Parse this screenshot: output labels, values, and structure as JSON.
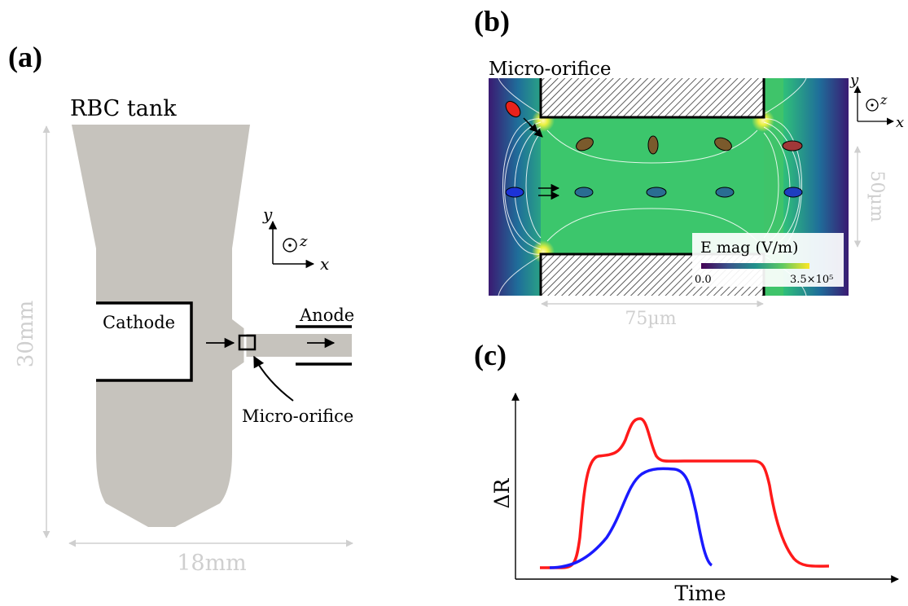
{
  "panel_a": {
    "tag": "(a)",
    "tank_label": "RBC tank",
    "cathode_label": "Cathode",
    "anode_label": "Anode",
    "orifice_label": "Micro-orifice",
    "height_label": "30mm",
    "width_label": "18mm",
    "axis_y": "y",
    "axis_z": "z",
    "axis_x": "x"
  },
  "panel_b": {
    "tag": "(b)",
    "orifice_label": "Micro-orifice",
    "colorbar_title": "E mag (V/m)",
    "colorbar_min": "0.0",
    "colorbar_max": "3.5×10⁵",
    "height_label": "50µm",
    "width_label": "75µm",
    "axis_y": "y",
    "axis_z": "z",
    "axis_x": "x",
    "colors": {
      "field_mid": "#3fc46a",
      "field_low": "#3b0f70"
    }
  },
  "panel_c": {
    "tag": "(c)",
    "ylabel": "ΔR",
    "xlabel": "Time",
    "colors": {
      "red_curve": "#ff1a1a",
      "blue_curve": "#1a1aff"
    }
  }
}
